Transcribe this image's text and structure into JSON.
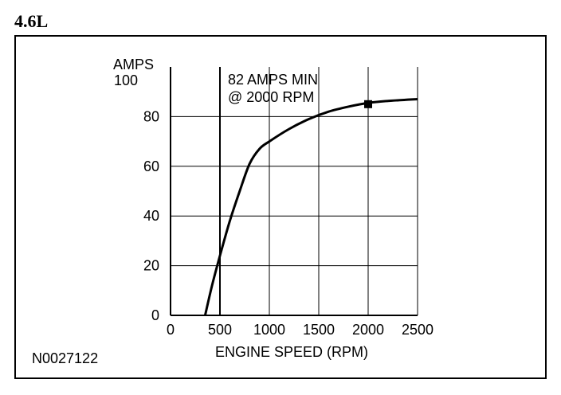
{
  "engine_label": "4.6L",
  "reference_code": "N0027122",
  "chart_data": {
    "type": "line",
    "title": "",
    "ylabel_lines": [
      "AMPS",
      "100"
    ],
    "xlabel": "ENGINE SPEED (RPM)",
    "xlim": [
      0,
      2500
    ],
    "ylim": [
      0,
      100
    ],
    "x_ticks": [
      0,
      500,
      1000,
      1500,
      2000,
      2500
    ],
    "y_tick_labels": [
      0,
      20,
      40,
      60,
      80
    ],
    "grid": true,
    "annotation_lines": [
      "82 AMPS MIN",
      "@ 2000 RPM"
    ],
    "marker": {
      "x": 2000,
      "y": 85
    },
    "series": [
      {
        "x": [
          350,
          420,
          500,
          600,
          700,
          800,
          900,
          1000,
          1200,
          1400,
          1600,
          1800,
          2000,
          2200,
          2400,
          2500
        ],
        "y": [
          0,
          12,
          24,
          38,
          50,
          61,
          67,
          70,
          75,
          79,
          82,
          84,
          85.5,
          86.3,
          86.8,
          87
        ]
      }
    ],
    "colors": {
      "line": "#000000",
      "grid": "#000000"
    }
  }
}
